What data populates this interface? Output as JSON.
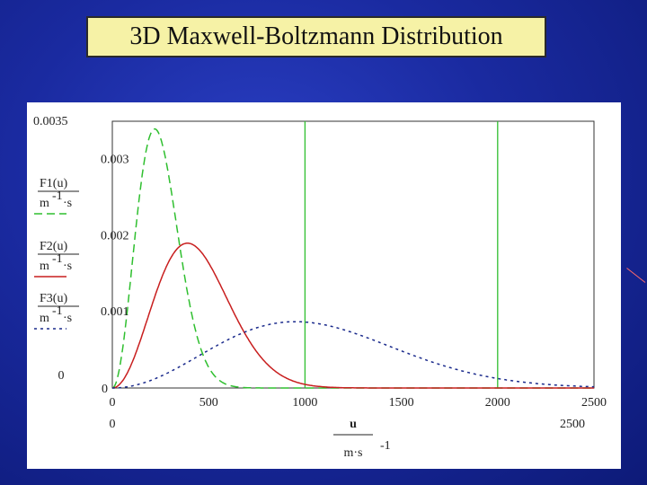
{
  "title": "3D Maxwell-Boltzmann Distribution",
  "chart_data": {
    "type": "line",
    "xlim": [
      0,
      2500
    ],
    "ylim": [
      0,
      0.0035
    ],
    "x_ticks": [
      "0",
      "500",
      "1000",
      "1500",
      "2000",
      "2500"
    ],
    "x_range_labels": [
      "0",
      "2500"
    ],
    "y_ticks": [
      {
        "label": "0.0035",
        "value": 0.0035
      },
      {
        "label": "0.003",
        "value": 0.003
      },
      {
        "label": "0.002",
        "value": 0.002
      },
      {
        "label": "0.001",
        "value": 0.001
      },
      {
        "label": "0",
        "value": 0
      }
    ],
    "y_min_label": "0",
    "vertical_markers": [
      1000,
      2000
    ],
    "xlabel": {
      "numerator": "u",
      "denominator_base": "m·s",
      "exponent": "-1"
    },
    "ylabels": [
      {
        "numerator": "F1(u)",
        "denominator_base": "m",
        "exponent": "-1",
        "denominator_tail": "·s"
      },
      {
        "numerator": "F2(u)",
        "denominator_base": "m",
        "exponent": "-1",
        "denominator_tail": "·s"
      },
      {
        "numerator": "F3(u)",
        "denominator_base": "m",
        "exponent": "-1",
        "denominator_tail": "·s"
      }
    ],
    "series": [
      {
        "color": "#2fbf2f",
        "dash": "9,5",
        "peak_speed": 220,
        "peak_value": 0.0034
      },
      {
        "color": "#c81e1e",
        "dash": "",
        "peak_speed": 390,
        "peak_value": 0.0019
      },
      {
        "color": "#1a2a8c",
        "dash": "3,4",
        "peak_speed": 950,
        "peak_value": 0.00087
      }
    ]
  }
}
